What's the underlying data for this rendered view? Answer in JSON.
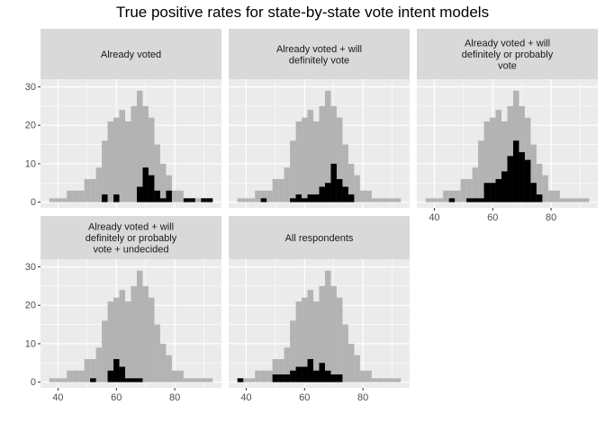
{
  "chart_data": {
    "type": "histogram",
    "title": "True positive rates for state-by-state vote intent models",
    "xlabel": "",
    "ylabel": "",
    "xlim": [
      34,
      96
    ],
    "ylim": [
      -1.5,
      32
    ],
    "x_ticks": [
      40,
      60,
      80
    ],
    "y_ticks": [
      0,
      10,
      20,
      30
    ],
    "bin_width": 2,
    "bin_centers": [
      36,
      38,
      40,
      42,
      44,
      46,
      48,
      50,
      52,
      54,
      56,
      58,
      60,
      62,
      64,
      66,
      68,
      70,
      72,
      74,
      76,
      78,
      80,
      82,
      84,
      86,
      88,
      90,
      92,
      94
    ],
    "background_histogram": [
      0,
      1,
      1,
      1,
      3,
      3,
      3,
      6,
      6,
      9,
      16,
      21,
      22,
      24,
      21,
      25,
      29,
      25,
      22,
      15,
      10,
      7,
      3,
      3,
      1,
      1,
      1,
      1,
      1,
      0
    ],
    "colors": {
      "background_bars": "#b3b3b3",
      "highlight_bars": "#000000",
      "panel_bg": "#ebebeb",
      "strip_bg": "#d9d9d9",
      "grid": "#ffffff"
    },
    "grid": true,
    "panels": [
      {
        "label": "Already voted",
        "label_lines": [
          "Already voted"
        ],
        "series": [
          {
            "values": [
              0,
              0,
              0,
              0,
              0,
              0,
              0,
              0,
              0,
              0,
              2,
              0,
              2,
              0,
              0,
              0,
              4,
              9,
              7,
              3,
              1,
              3,
              0,
              0,
              1,
              1,
              0,
              1,
              1,
              0
            ]
          }
        ]
      },
      {
        "label": "Already voted + will definitely vote",
        "label_lines": [
          "Already voted + will",
          "definitely vote"
        ],
        "series": [
          {
            "values": [
              0,
              0,
              0,
              0,
              0,
              1,
              0,
              0,
              0,
              0,
              1,
              2,
              1,
              2,
              2,
              4,
              5,
              10,
              6,
              4,
              2,
              0,
              0,
              0,
              0,
              0,
              0,
              0,
              0,
              0
            ]
          }
        ]
      },
      {
        "label": "Already voted + will definitely or probably vote",
        "label_lines": [
          "Already voted + will",
          "definitely or probably",
          "vote"
        ],
        "series": [
          {
            "values": [
              0,
              0,
              0,
              0,
              0,
              1,
              0,
              0,
              1,
              1,
              1,
              5,
              5,
              6,
              8,
              12,
              16,
              13,
              11,
              5,
              2,
              0,
              0,
              0,
              0,
              0,
              0,
              0,
              0,
              0
            ]
          }
        ]
      },
      {
        "label": "Already voted + will definitely or probably vote + undecided",
        "label_lines": [
          "Already voted + will",
          "definitely or probably",
          "vote + undecided"
        ],
        "series": [
          {
            "values": [
              0,
              0,
              0,
              0,
              0,
              0,
              0,
              0,
              1,
              0,
              0,
              3,
              6,
              4,
              1,
              1,
              1,
              0,
              0,
              0,
              0,
              0,
              0,
              0,
              0,
              0,
              0,
              0,
              0,
              0
            ]
          }
        ]
      },
      {
        "label": "All respondents",
        "label_lines": [
          "All respondents"
        ],
        "series": [
          {
            "values": [
              0,
              1,
              0,
              0,
              0,
              0,
              0,
              2,
              2,
              2,
              3,
              4,
              4,
              6,
              3,
              5,
              3,
              2,
              2,
              0,
              0,
              0,
              0,
              0,
              0,
              0,
              0,
              0,
              0,
              0
            ]
          }
        ]
      }
    ]
  }
}
